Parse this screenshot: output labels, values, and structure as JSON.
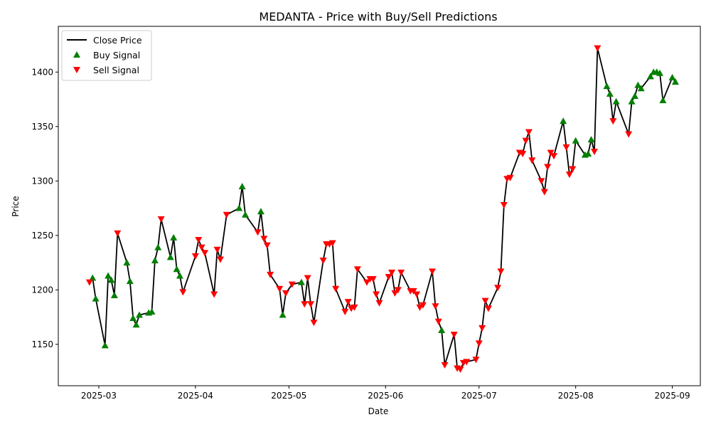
{
  "chart_data": {
    "type": "line",
    "title": "MEDANTA - Price with Buy/Sell Predictions",
    "xlabel": "Date",
    "ylabel": "Price",
    "xlim": [
      "2025-02-16",
      "2025-09-10"
    ],
    "ylim": [
      1112,
      1442
    ],
    "x_ticks": [
      "2025-03-01",
      "2025-04-01",
      "2025-05-01",
      "2025-06-01",
      "2025-07-01",
      "2025-08-01",
      "2025-09-01"
    ],
    "x_tick_labels": [
      "2025-03",
      "2025-04",
      "2025-05",
      "2025-06",
      "2025-07",
      "2025-08",
      "2025-09"
    ],
    "y_ticks": [
      1150,
      1200,
      1250,
      1300,
      1350,
      1400
    ],
    "grid": false,
    "legend_position": "upper-left",
    "legend": [
      "Close Price",
      "Buy Signal",
      "Sell Signal"
    ],
    "colors": {
      "line": "#000000",
      "buy": "#008000",
      "sell": "#ff0000"
    },
    "series": [
      {
        "name": "Close Price",
        "points": [
          [
            "2025-02-26",
            1207
          ],
          [
            "2025-02-27",
            1211
          ],
          [
            "2025-02-28",
            1192
          ],
          [
            "2025-03-03",
            1149
          ],
          [
            "2025-03-04",
            1213
          ],
          [
            "2025-03-05",
            1209
          ],
          [
            "2025-03-06",
            1195
          ],
          [
            "2025-03-07",
            1252
          ],
          [
            "2025-03-10",
            1225
          ],
          [
            "2025-03-11",
            1208
          ],
          [
            "2025-03-12",
            1174
          ],
          [
            "2025-03-13",
            1168
          ],
          [
            "2025-03-14",
            1177
          ],
          [
            "2025-03-17",
            1179
          ],
          [
            "2025-03-18",
            1180
          ],
          [
            "2025-03-19",
            1227
          ],
          [
            "2025-03-20",
            1239
          ],
          [
            "2025-03-21",
            1265
          ],
          [
            "2025-03-24",
            1230
          ],
          [
            "2025-03-25",
            1248
          ],
          [
            "2025-03-26",
            1219
          ],
          [
            "2025-03-27",
            1213
          ],
          [
            "2025-03-28",
            1198
          ],
          [
            "2025-04-01",
            1231
          ],
          [
            "2025-04-02",
            1246
          ],
          [
            "2025-04-03",
            1239
          ],
          [
            "2025-04-04",
            1234
          ],
          [
            "2025-04-07",
            1196
          ],
          [
            "2025-04-08",
            1237
          ],
          [
            "2025-04-09",
            1228
          ],
          [
            "2025-04-11",
            1269
          ],
          [
            "2025-04-15",
            1275
          ],
          [
            "2025-04-16",
            1295
          ],
          [
            "2025-04-17",
            1269
          ],
          [
            "2025-04-21",
            1253
          ],
          [
            "2025-04-22",
            1272
          ],
          [
            "2025-04-23",
            1247
          ],
          [
            "2025-04-24",
            1241
          ],
          [
            "2025-04-25",
            1214
          ],
          [
            "2025-04-28",
            1201
          ],
          [
            "2025-04-29",
            1177
          ],
          [
            "2025-04-30",
            1197
          ],
          [
            "2025-05-02",
            1205
          ],
          [
            "2025-05-05",
            1207
          ],
          [
            "2025-05-06",
            1187
          ],
          [
            "2025-05-07",
            1211
          ],
          [
            "2025-05-08",
            1187
          ],
          [
            "2025-05-09",
            1170
          ],
          [
            "2025-05-12",
            1227
          ],
          [
            "2025-05-13",
            1242
          ],
          [
            "2025-05-14",
            1242
          ],
          [
            "2025-05-15",
            1243
          ],
          [
            "2025-05-16",
            1201
          ],
          [
            "2025-05-19",
            1180
          ],
          [
            "2025-05-20",
            1189
          ],
          [
            "2025-05-21",
            1183
          ],
          [
            "2025-05-22",
            1184
          ],
          [
            "2025-05-23",
            1219
          ],
          [
            "2025-05-26",
            1207
          ],
          [
            "2025-05-27",
            1210
          ],
          [
            "2025-05-28",
            1210
          ],
          [
            "2025-05-29",
            1196
          ],
          [
            "2025-05-30",
            1188
          ],
          [
            "2025-06-02",
            1212
          ],
          [
            "2025-06-03",
            1216
          ],
          [
            "2025-06-04",
            1197
          ],
          [
            "2025-06-05",
            1200
          ],
          [
            "2025-06-06",
            1216
          ],
          [
            "2025-06-09",
            1199
          ],
          [
            "2025-06-10",
            1199
          ],
          [
            "2025-06-11",
            1196
          ],
          [
            "2025-06-12",
            1184
          ],
          [
            "2025-06-13",
            1186
          ],
          [
            "2025-06-16",
            1217
          ],
          [
            "2025-06-17",
            1185
          ],
          [
            "2025-06-18",
            1171
          ],
          [
            "2025-06-19",
            1163
          ],
          [
            "2025-06-20",
            1131
          ],
          [
            "2025-06-23",
            1159
          ],
          [
            "2025-06-24",
            1128
          ],
          [
            "2025-06-25",
            1127
          ],
          [
            "2025-06-26",
            1133
          ],
          [
            "2025-06-27",
            1134
          ],
          [
            "2025-06-30",
            1136
          ],
          [
            "2025-07-01",
            1151
          ],
          [
            "2025-07-02",
            1165
          ],
          [
            "2025-07-03",
            1190
          ],
          [
            "2025-07-04",
            1183
          ],
          [
            "2025-07-07",
            1202
          ],
          [
            "2025-07-08",
            1217
          ],
          [
            "2025-07-09",
            1278
          ],
          [
            "2025-07-10",
            1302
          ],
          [
            "2025-07-11",
            1303
          ],
          [
            "2025-07-14",
            1326
          ],
          [
            "2025-07-15",
            1325
          ],
          [
            "2025-07-16",
            1337
          ],
          [
            "2025-07-17",
            1345
          ],
          [
            "2025-07-18",
            1319
          ],
          [
            "2025-07-21",
            1300
          ],
          [
            "2025-07-22",
            1290
          ],
          [
            "2025-07-23",
            1313
          ],
          [
            "2025-07-24",
            1326
          ],
          [
            "2025-07-25",
            1323
          ],
          [
            "2025-07-28",
            1355
          ],
          [
            "2025-07-29",
            1331
          ],
          [
            "2025-07-30",
            1306
          ],
          [
            "2025-07-31",
            1311
          ],
          [
            "2025-08-01",
            1337
          ],
          [
            "2025-08-04",
            1324
          ],
          [
            "2025-08-05",
            1325
          ],
          [
            "2025-08-06",
            1338
          ],
          [
            "2025-08-07",
            1327
          ],
          [
            "2025-08-08",
            1422
          ],
          [
            "2025-08-11",
            1387
          ],
          [
            "2025-08-12",
            1380
          ],
          [
            "2025-08-13",
            1355
          ],
          [
            "2025-08-14",
            1373
          ],
          [
            "2025-08-18",
            1343
          ],
          [
            "2025-08-19",
            1373
          ],
          [
            "2025-08-20",
            1378
          ],
          [
            "2025-08-21",
            1388
          ],
          [
            "2025-08-22",
            1385
          ],
          [
            "2025-08-25",
            1396
          ],
          [
            "2025-08-26",
            1400
          ],
          [
            "2025-08-27",
            1400
          ],
          [
            "2025-08-28",
            1399
          ],
          [
            "2025-08-29",
            1374
          ],
          [
            "2025-09-01",
            1395
          ],
          [
            "2025-09-02",
            1391
          ]
        ]
      },
      {
        "name": "Buy Signal",
        "points": [
          [
            "2025-02-27",
            1211
          ],
          [
            "2025-02-28",
            1192
          ],
          [
            "2025-03-03",
            1149
          ],
          [
            "2025-03-04",
            1213
          ],
          [
            "2025-03-05",
            1209
          ],
          [
            "2025-03-06",
            1195
          ],
          [
            "2025-03-10",
            1225
          ],
          [
            "2025-03-11",
            1208
          ],
          [
            "2025-03-12",
            1174
          ],
          [
            "2025-03-13",
            1168
          ],
          [
            "2025-03-14",
            1177
          ],
          [
            "2025-03-17",
            1179
          ],
          [
            "2025-03-18",
            1180
          ],
          [
            "2025-03-19",
            1227
          ],
          [
            "2025-03-20",
            1239
          ],
          [
            "2025-03-24",
            1230
          ],
          [
            "2025-03-25",
            1248
          ],
          [
            "2025-03-26",
            1219
          ],
          [
            "2025-03-27",
            1213
          ],
          [
            "2025-04-15",
            1275
          ],
          [
            "2025-04-16",
            1295
          ],
          [
            "2025-04-17",
            1269
          ],
          [
            "2025-04-22",
            1272
          ],
          [
            "2025-04-29",
            1177
          ],
          [
            "2025-05-05",
            1207
          ],
          [
            "2025-06-19",
            1163
          ],
          [
            "2025-07-28",
            1355
          ],
          [
            "2025-08-01",
            1337
          ],
          [
            "2025-08-04",
            1324
          ],
          [
            "2025-08-05",
            1325
          ],
          [
            "2025-08-06",
            1338
          ],
          [
            "2025-08-11",
            1387
          ],
          [
            "2025-08-12",
            1380
          ],
          [
            "2025-08-14",
            1373
          ],
          [
            "2025-08-19",
            1373
          ],
          [
            "2025-08-20",
            1378
          ],
          [
            "2025-08-21",
            1388
          ],
          [
            "2025-08-22",
            1385
          ],
          [
            "2025-08-25",
            1396
          ],
          [
            "2025-08-26",
            1400
          ],
          [
            "2025-08-27",
            1400
          ],
          [
            "2025-08-28",
            1399
          ],
          [
            "2025-08-29",
            1374
          ],
          [
            "2025-09-01",
            1395
          ],
          [
            "2025-09-02",
            1391
          ]
        ]
      },
      {
        "name": "Sell Signal",
        "points": [
          [
            "2025-02-26",
            1207
          ],
          [
            "2025-03-07",
            1252
          ],
          [
            "2025-03-21",
            1265
          ],
          [
            "2025-03-28",
            1198
          ],
          [
            "2025-04-01",
            1231
          ],
          [
            "2025-04-02",
            1246
          ],
          [
            "2025-04-03",
            1239
          ],
          [
            "2025-04-04",
            1234
          ],
          [
            "2025-04-07",
            1196
          ],
          [
            "2025-04-08",
            1237
          ],
          [
            "2025-04-09",
            1228
          ],
          [
            "2025-04-11",
            1269
          ],
          [
            "2025-04-21",
            1253
          ],
          [
            "2025-04-23",
            1247
          ],
          [
            "2025-04-24",
            1241
          ],
          [
            "2025-04-25",
            1214
          ],
          [
            "2025-04-28",
            1201
          ],
          [
            "2025-04-30",
            1197
          ],
          [
            "2025-05-02",
            1205
          ],
          [
            "2025-05-06",
            1187
          ],
          [
            "2025-05-07",
            1211
          ],
          [
            "2025-05-08",
            1187
          ],
          [
            "2025-05-09",
            1170
          ],
          [
            "2025-05-12",
            1227
          ],
          [
            "2025-05-13",
            1242
          ],
          [
            "2025-05-14",
            1242
          ],
          [
            "2025-05-15",
            1243
          ],
          [
            "2025-05-16",
            1201
          ],
          [
            "2025-05-19",
            1180
          ],
          [
            "2025-05-20",
            1189
          ],
          [
            "2025-05-21",
            1183
          ],
          [
            "2025-05-22",
            1184
          ],
          [
            "2025-05-23",
            1219
          ],
          [
            "2025-05-26",
            1207
          ],
          [
            "2025-05-27",
            1210
          ],
          [
            "2025-05-28",
            1210
          ],
          [
            "2025-05-29",
            1196
          ],
          [
            "2025-05-30",
            1188
          ],
          [
            "2025-06-02",
            1212
          ],
          [
            "2025-06-03",
            1216
          ],
          [
            "2025-06-04",
            1197
          ],
          [
            "2025-06-05",
            1200
          ],
          [
            "2025-06-06",
            1216
          ],
          [
            "2025-06-09",
            1199
          ],
          [
            "2025-06-10",
            1199
          ],
          [
            "2025-06-11",
            1196
          ],
          [
            "2025-06-12",
            1184
          ],
          [
            "2025-06-13",
            1186
          ],
          [
            "2025-06-16",
            1217
          ],
          [
            "2025-06-17",
            1185
          ],
          [
            "2025-06-18",
            1171
          ],
          [
            "2025-06-20",
            1131
          ],
          [
            "2025-06-23",
            1159
          ],
          [
            "2025-06-24",
            1128
          ],
          [
            "2025-06-25",
            1127
          ],
          [
            "2025-06-26",
            1133
          ],
          [
            "2025-06-27",
            1134
          ],
          [
            "2025-06-30",
            1136
          ],
          [
            "2025-07-01",
            1151
          ],
          [
            "2025-07-02",
            1165
          ],
          [
            "2025-07-03",
            1190
          ],
          [
            "2025-07-04",
            1183
          ],
          [
            "2025-07-07",
            1202
          ],
          [
            "2025-07-08",
            1217
          ],
          [
            "2025-07-09",
            1278
          ],
          [
            "2025-07-10",
            1302
          ],
          [
            "2025-07-11",
            1303
          ],
          [
            "2025-07-14",
            1326
          ],
          [
            "2025-07-15",
            1325
          ],
          [
            "2025-07-16",
            1337
          ],
          [
            "2025-07-17",
            1345
          ],
          [
            "2025-07-18",
            1319
          ],
          [
            "2025-07-21",
            1300
          ],
          [
            "2025-07-22",
            1290
          ],
          [
            "2025-07-23",
            1313
          ],
          [
            "2025-07-24",
            1326
          ],
          [
            "2025-07-25",
            1323
          ],
          [
            "2025-07-29",
            1331
          ],
          [
            "2025-07-30",
            1306
          ],
          [
            "2025-07-31",
            1311
          ],
          [
            "2025-08-07",
            1327
          ],
          [
            "2025-08-08",
            1422
          ],
          [
            "2025-08-13",
            1355
          ],
          [
            "2025-08-18",
            1343
          ]
        ]
      }
    ]
  }
}
